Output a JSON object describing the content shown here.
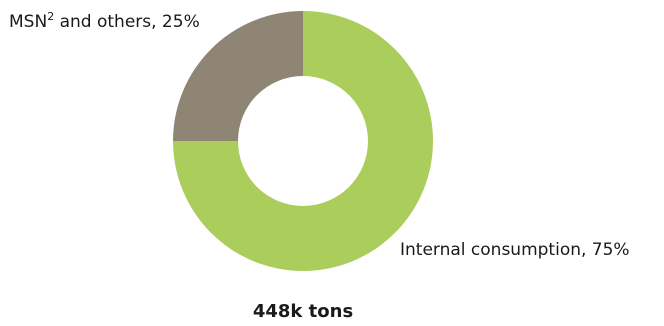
{
  "chart_data": {
    "type": "pie",
    "variant": "donut",
    "slices": [
      {
        "name": "Internal consumption",
        "value": 75,
        "label": "Internal consumption, 75%",
        "color": "#abcd5c"
      },
      {
        "name_base": "MSN",
        "name_sup": "2",
        "name_rest": " and others, 25%",
        "value": 25,
        "color": "#8f8574"
      }
    ],
    "total_label": "448k tons",
    "start_angle": "12 o'clock",
    "direction": "clockwise"
  }
}
